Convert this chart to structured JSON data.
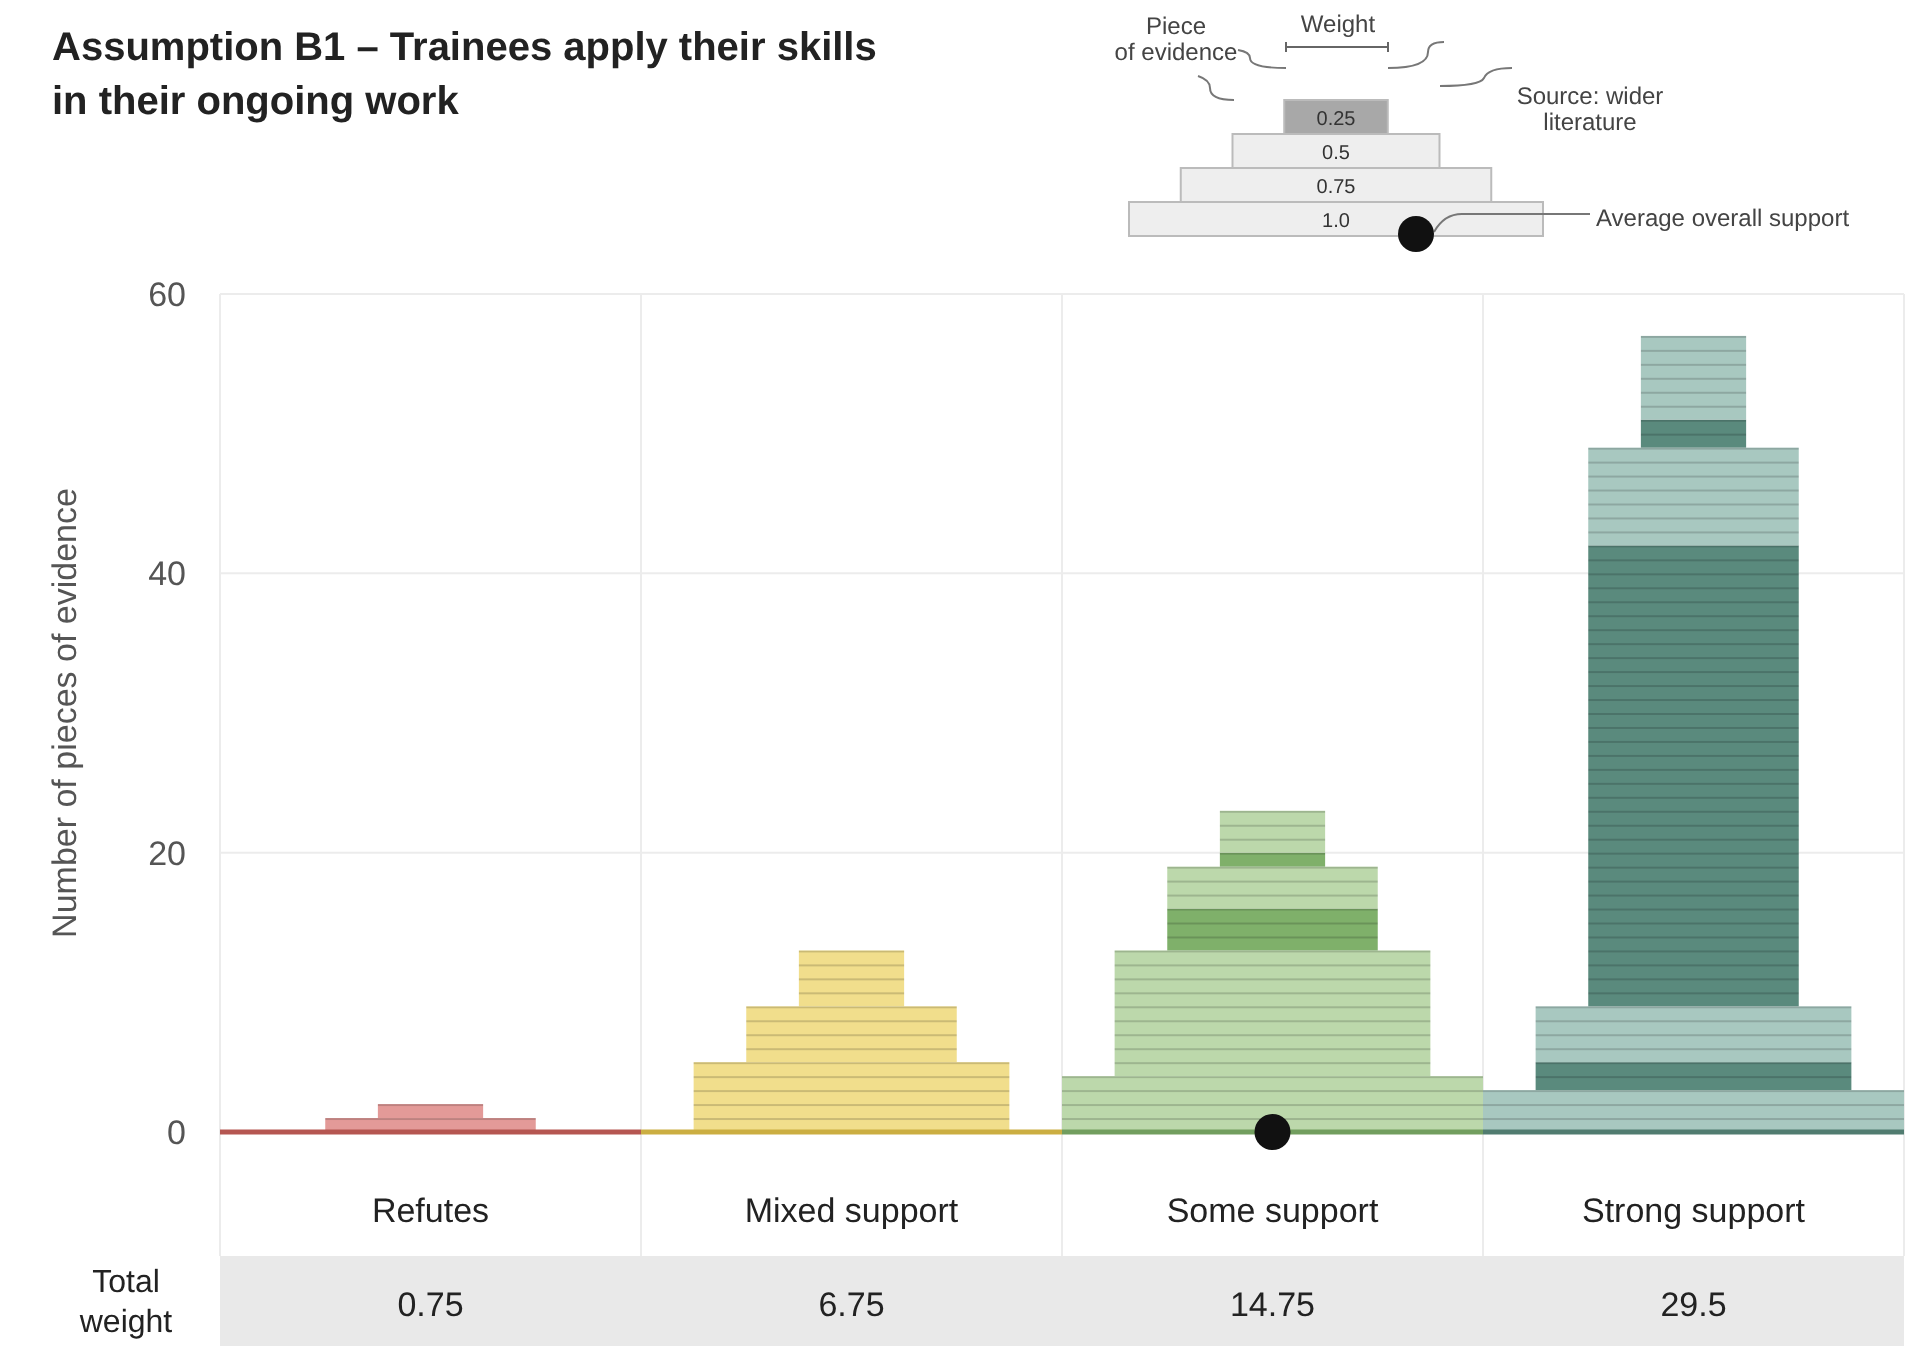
{
  "chart_data": {
    "type": "bar",
    "stacked": true,
    "title": "Assumption B1 – Trainees apply their skills in their ongoing work",
    "ylabel": "Number of pieces of evidence",
    "categories": [
      "Refutes",
      "Mixed support",
      "Some support",
      "Strong support"
    ],
    "ylim": [
      0,
      60
    ],
    "yticks": [
      0,
      20,
      40,
      60
    ],
    "grid": true,
    "series": [
      {
        "colors": [
          "#c9605a",
          "#e2c24a",
          "#7fb06a",
          "#5a8a7d"
        ],
        "values": [
          0,
          0,
          0,
          0
        ]
      },
      {
        "colors": [
          "#e39a98",
          "#f1de8c",
          "#bcd8ab",
          "#a8c8c0"
        ],
        "values": [
          0,
          0,
          4,
          3
        ]
      },
      {
        "colors": [
          "#c9605a",
          "#e2c24a",
          "#7fb06a",
          "#5a8a7d"
        ],
        "values": [
          0,
          0,
          0,
          2
        ]
      },
      {
        "colors": [
          "#e39a98",
          "#f1de8c",
          "#bcd8ab",
          "#a8c8c0"
        ],
        "values": [
          0,
          5,
          9,
          4
        ]
      },
      {
        "colors": [
          "#c9605a",
          "#e2c24a",
          "#7fb06a",
          "#5a8a7d"
        ],
        "values": [
          0,
          0,
          3,
          33
        ]
      },
      {
        "colors": [
          "#e39a98",
          "#f1de8c",
          "#bcd8ab",
          "#a8c8c0"
        ],
        "values": [
          1,
          4,
          3,
          7
        ]
      },
      {
        "colors": [
          "#c9605a",
          "#e2c24a",
          "#7fb06a",
          "#5a8a7d"
        ],
        "values": [
          0,
          0,
          1,
          2
        ]
      },
      {
        "colors": [
          "#e39a98",
          "#f1de8c",
          "#bcd8ab",
          "#a8c8c0"
        ],
        "values": [
          1,
          4,
          3,
          6
        ]
      },
      {
        "type": "scatter",
        "values": [
          null,
          null,
          0,
          null
        ],
        "color": "#111111"
      }
    ],
    "annotations": [
      "Total weight",
      "0.75",
      "6.75",
      "14.75",
      "29.5",
      "Piece of evidence",
      "Weight",
      "Source: wider literature",
      "Average overall support",
      "0.25",
      "0.5",
      "0.75",
      "1.0"
    ]
  }
}
